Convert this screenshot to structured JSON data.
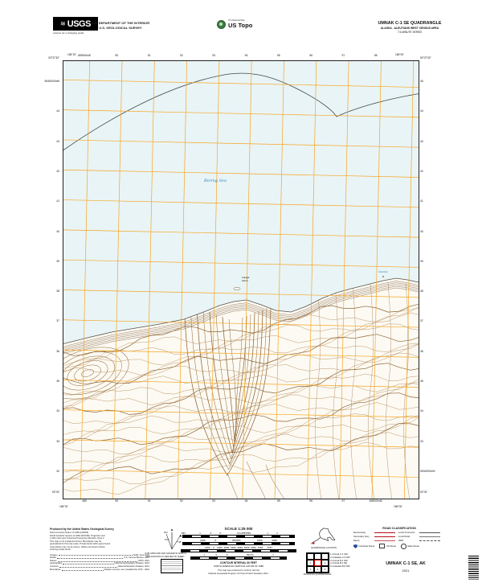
{
  "header": {
    "usgs_logo_text": "USGS",
    "usgs_tagline": "science for a changing world",
    "dept_line1": "U.S. DEPARTMENT OF THE INTERIOR",
    "dept_line2": "U.S. GEOLOGICAL SURVEY",
    "ustopo_overline": "The National Map",
    "ustopo_name": "US Topo",
    "quad_title": "UMNAK C-1 SE QUADRANGLE",
    "quad_subtitle1": "ALASKA - ALEUTIANS WEST CENSUS AREA",
    "quad_subtitle2": "7.5-MINUTE SERIES"
  },
  "map": {
    "corners": {
      "tl_lat": "53°37'30\"",
      "tl_lon": "168°15'",
      "tr_lat": "53°37'30\"",
      "tr_lon": "168°00'",
      "bl_lat": "53°30'",
      "bl_lon": "168°15'",
      "br_lat": "53°30'",
      "br_lon": "168°00'"
    },
    "top_ticks": [
      "489000mE",
      "90",
      "91",
      "92",
      "93",
      "94",
      "95",
      "96",
      "97",
      "98"
    ],
    "bottom_ticks": [
      "489",
      "90",
      "91",
      "92",
      "93",
      "94",
      "95",
      "96",
      "97",
      "498000mE"
    ],
    "left_ticks": [
      "5945000mN",
      "44",
      "43",
      "42",
      "41",
      "40",
      "39",
      "38",
      "37",
      "36",
      "35",
      "34",
      "33",
      "32"
    ],
    "right_ticks": [
      "45",
      "44",
      "43",
      "42",
      "41",
      "40",
      "39",
      "38",
      "37",
      "36",
      "35",
      "34",
      "33",
      "5932000mN"
    ],
    "water_label": "Bering Sea",
    "islet_label_line1": "Adugak",
    "islet_label_line2": "Island",
    "rock_label": "Flat Rock",
    "grid_color": "#f5a623",
    "water_color": "#e9f4f6",
    "contour_color": "#b5864f"
  },
  "footer": {
    "produced_by": "Produced by the United States Geological Survey",
    "credit_lines": [
      "North American Datum of 1983 (NAD83)",
      "World Geodetic System of 1984 (WGS84).  Projection and",
      "1 000-meter grid: Universal Transverse Mercator, Zone 2",
      "This map is not a legal document. Boundaries may be",
      "generalized for this map scale. Private lands within government",
      "reservations may not be shown. Obtain permission before",
      "entering private lands."
    ],
    "sources": [
      {
        "k": "Imagery",
        "v": "NAIP, June 2019"
      },
      {
        "k": "Roads",
        "v": "U.S. Census Bureau, 2017"
      },
      {
        "k": "Names",
        "v": "GNIS, 2021"
      },
      {
        "k": "Hydrography",
        "v": "National Hydrography Dataset, 2015"
      },
      {
        "k": "Contours",
        "v": "National Elevation Dataset, 2012"
      },
      {
        "k": "Boundaries",
        "v": "Multiple sources; see metadata file 1972 - 2016"
      }
    ],
    "decl_star": "✶",
    "decl_gn": "GN",
    "decl_mn": "MN",
    "decl_gn_value": "0°21'",
    "decl_mn_value": "7°48'",
    "decl_caption_1": "UTM GRID AND 2021 MAGNETIC NORTH",
    "decl_caption_2": "DECLINATION AT CENTER OF SHEET",
    "scale_title": "SCALE 1:25 000",
    "scale_bars": [
      {
        "ticks": "1      .5      0            KILOMETERS            1      2"
      },
      {
        "ticks": "1000       0            METERS            1000       2000"
      },
      {
        "ticks": "1000  0  1000 2000 3000 4000 5000 6000 7000   FEET"
      },
      {
        "ticks": "1       .5       0              MILES              1"
      }
    ],
    "contour_interval_1": "CONTOUR INTERVAL 50 FEET",
    "contour_interval_2": "NORTH AMERICAN VERTICAL DATUM OF 1988",
    "standard_note_1": "This map was produced to conform with the",
    "standard_note_2": "National Geospatial Program US Topo Product Standard, 2011.",
    "quad_location_label": "QUADRANGLE LOCATION",
    "adjoining_label": "ADJOINING QUADRANGLES",
    "adjoining_grid": [
      {
        "n": ""
      },
      {
        "n": ""
      },
      {
        "n": ""
      },
      {
        "n": "1"
      },
      {
        "n": "",
        "red": true
      },
      {
        "n": "2"
      },
      {
        "n": "3"
      },
      {
        "n": "4"
      },
      {
        "n": "5"
      }
    ],
    "adjoining_quads": [
      "1  Umnak C-1 SW",
      "2  Unalaska C-6 SW",
      "3  Umnak B-1 NW",
      "4  Umnak B-1 NE",
      "5  Unalaska B-6 NW"
    ],
    "road_title": "ROAD CLASSIFICATION",
    "road_rows": [
      {
        "l1": "Expressway",
        "c1": "red-thick",
        "l2": "Local Connector",
        "c2": "blk"
      },
      {
        "l1": "Secondary Hwy",
        "c1": "redl",
        "l2": "Local Road",
        "c2": "blk-thin"
      },
      {
        "l1": "Ramp",
        "c1": "red-thin",
        "l2": "4WD",
        "c2": "dash"
      }
    ],
    "shield_1": "Interstate Route",
    "shield_2": "US Route",
    "shield_3": "State Route",
    "sheet_title": "UMNAK C-1 SE, AK",
    "sheet_year": "2021"
  }
}
